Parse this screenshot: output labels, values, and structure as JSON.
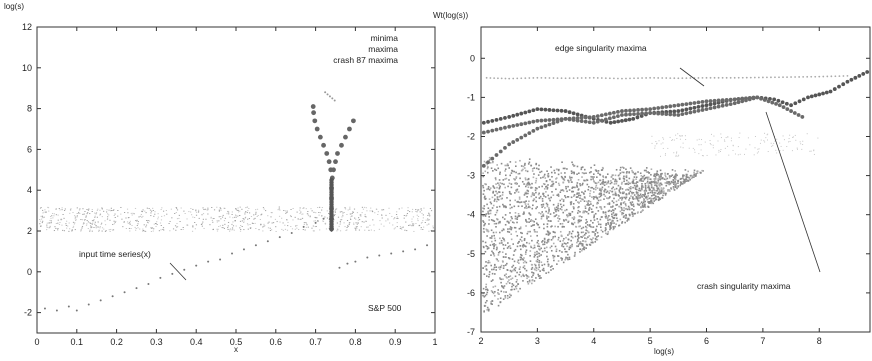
{
  "chart_data": [
    {
      "type": "scatter",
      "ylabel": "log(s)",
      "xlabel": "x",
      "xlim": [
        0,
        1
      ],
      "ylim": [
        -3,
        12
      ],
      "xticks": [
        "0",
        "0.1",
        "0.2",
        "0.3",
        "0.4",
        "0.5",
        "0.6",
        "0.7",
        "0.8",
        "0.9",
        "1"
      ],
      "yticks": [
        "-2",
        "0",
        "2",
        "4",
        "6",
        "8",
        "10",
        "12"
      ],
      "legend": [
        "minima",
        "maxima",
        "crash 87 maxima"
      ],
      "annotations": [
        "input time series(x)",
        "S&P 500"
      ],
      "series": [
        {
          "name": "input time series(x)",
          "points": [
            [
              0.02,
              -1.8
            ],
            [
              0.05,
              -1.9
            ],
            [
              0.08,
              -1.7
            ],
            [
              0.1,
              -1.9
            ],
            [
              0.13,
              -1.6
            ],
            [
              0.16,
              -1.4
            ],
            [
              0.19,
              -1.2
            ],
            [
              0.22,
              -1.0
            ],
            [
              0.25,
              -0.8
            ],
            [
              0.28,
              -0.6
            ],
            [
              0.31,
              -0.3
            ],
            [
              0.34,
              -0.1
            ],
            [
              0.37,
              0.1
            ],
            [
              0.4,
              0.3
            ],
            [
              0.43,
              0.5
            ],
            [
              0.46,
              0.6
            ],
            [
              0.49,
              0.9
            ],
            [
              0.52,
              1.1
            ],
            [
              0.55,
              1.3
            ],
            [
              0.58,
              1.5
            ],
            [
              0.61,
              1.7
            ],
            [
              0.64,
              1.9
            ],
            [
              0.67,
              2.2
            ],
            [
              0.7,
              2.4
            ],
            [
              0.72,
              2.6
            ],
            [
              0.74,
              2.0
            ],
            [
              0.76,
              0.2
            ],
            [
              0.78,
              0.4
            ],
            [
              0.8,
              0.5
            ],
            [
              0.83,
              0.7
            ],
            [
              0.86,
              0.8
            ],
            [
              0.89,
              0.9
            ],
            [
              0.92,
              1.0
            ],
            [
              0.95,
              1.1
            ],
            [
              0.98,
              1.3
            ]
          ]
        },
        {
          "name": "crash 87 maxima",
          "points": [
            [
              0.74,
              2.1
            ],
            [
              0.74,
              2.6
            ],
            [
              0.74,
              3.1
            ],
            [
              0.74,
              3.6
            ],
            [
              0.74,
              4.1
            ],
            [
              0.742,
              4.6
            ],
            [
              0.745,
              5.0
            ],
            [
              0.75,
              5.4
            ],
            [
              0.755,
              5.8
            ],
            [
              0.765,
              6.2
            ],
            [
              0.775,
              6.6
            ],
            [
              0.785,
              7.0
            ],
            [
              0.795,
              7.4
            ],
            [
              0.738,
              5.0
            ],
            [
              0.734,
              5.4
            ],
            [
              0.728,
              5.8
            ],
            [
              0.72,
              6.2
            ],
            [
              0.712,
              6.6
            ],
            [
              0.704,
              7.0
            ],
            [
              0.698,
              7.4
            ],
            [
              0.695,
              7.8
            ],
            [
              0.694,
              8.1
            ]
          ]
        },
        {
          "name": "maxima",
          "points": [
            [
              0.724,
              8.8
            ],
            [
              0.73,
              8.7
            ],
            [
              0.736,
              8.6
            ],
            [
              0.742,
              8.5
            ],
            [
              0.748,
              8.4
            ]
          ]
        }
      ]
    },
    {
      "type": "scatter",
      "ylabel": "Wt(log(s))",
      "xlabel": "log(s)",
      "xlim": [
        2,
        8.9
      ],
      "ylim": [
        -7,
        0.8
      ],
      "xticks": [
        "2",
        "3",
        "4",
        "5",
        "6",
        "7",
        "8"
      ],
      "yticks": [
        "-7",
        "-6",
        "-5",
        "-4",
        "-3",
        "-2",
        "-1",
        "0"
      ],
      "annotations": [
        "edge singularity maxima",
        "crash singularity maxima"
      ],
      "series": [
        {
          "name": "edge singularity maxima",
          "points": [
            [
              2.1,
              -0.5
            ],
            [
              2.5,
              -0.52
            ],
            [
              3,
              -0.5
            ],
            [
              3.5,
              -0.51
            ],
            [
              4,
              -0.5
            ],
            [
              4.5,
              -0.52
            ],
            [
              5,
              -0.5
            ],
            [
              5.5,
              -0.51
            ],
            [
              6,
              -0.5
            ],
            [
              6.5,
              -0.5
            ],
            [
              7,
              -0.49
            ],
            [
              7.5,
              -0.48
            ],
            [
              8,
              -0.47
            ],
            [
              8.5,
              -0.45
            ]
          ]
        },
        {
          "name": "crash singularity maxima",
          "points": [
            [
              2.05,
              -1.65
            ],
            [
              2.5,
              -1.5
            ],
            [
              3,
              -1.3
            ],
            [
              3.5,
              -1.35
            ],
            [
              4,
              -1.55
            ],
            [
              4.3,
              -1.65
            ],
            [
              4.7,
              -1.55
            ],
            [
              5,
              -1.4
            ],
            [
              5.5,
              -1.35
            ],
            [
              6,
              -1.2
            ],
            [
              6.5,
              -1.05
            ],
            [
              6.9,
              -1.0
            ],
            [
              7.2,
              -1.05
            ],
            [
              7.5,
              -1.2
            ],
            [
              7.8,
              -1.0
            ],
            [
              8.2,
              -0.85
            ],
            [
              8.5,
              -0.6
            ],
            [
              8.85,
              -0.35
            ]
          ]
        },
        {
          "points": [
            [
              2.05,
              -1.9
            ],
            [
              2.5,
              -1.75
            ],
            [
              3,
              -1.6
            ],
            [
              3.5,
              -1.55
            ],
            [
              4,
              -1.65
            ],
            [
              4.5,
              -1.45
            ],
            [
              5,
              -1.4
            ],
            [
              5.5,
              -1.45
            ],
            [
              6,
              -1.3
            ],
            [
              6.5,
              -1.15
            ],
            [
              6.9,
              -1.0
            ],
            [
              7.3,
              -1.2
            ],
            [
              7.7,
              -1.5
            ]
          ]
        },
        {
          "points": [
            [
              2.05,
              -2.75
            ],
            [
              2.5,
              -2.2
            ],
            [
              3,
              -1.8
            ],
            [
              3.5,
              -1.55
            ],
            [
              4,
              -1.5
            ],
            [
              4.5,
              -1.35
            ],
            [
              5,
              -1.3
            ],
            [
              5.5,
              -1.2
            ],
            [
              6,
              -1.1
            ],
            [
              6.5,
              -1.05
            ],
            [
              6.9,
              -1.0
            ]
          ]
        }
      ]
    }
  ]
}
